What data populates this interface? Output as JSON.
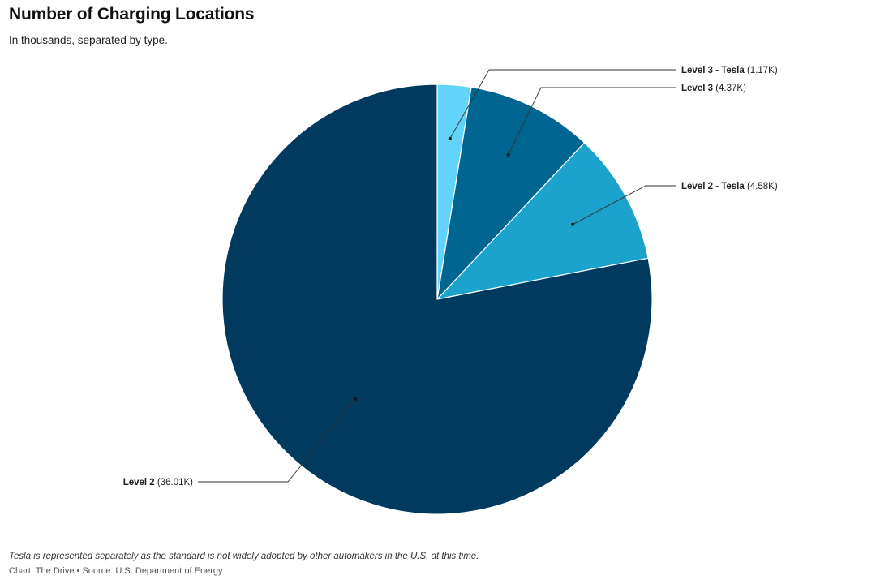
{
  "header": {
    "title": "Number of Charging Locations",
    "subtitle": "In thousands, separated by type."
  },
  "footer": {
    "note": "Tesla is represented separately as the standard is not widely adopted by other automakers in the U.S. at this time.",
    "credit": "Chart: The Drive • Source: U.S. Department of Energy"
  },
  "chart_data": {
    "type": "pie",
    "title": "Number of Charging Locations",
    "subtitle": "In thousands, separated by type.",
    "start_angle": "12 o'clock, clockwise",
    "slices": [
      {
        "name": "Level 3 - Tesla",
        "value": 1.17,
        "label": "(1.17K)",
        "color": "#62D4FA"
      },
      {
        "name": "Level 3",
        "value": 4.37,
        "label": "(4.37K)",
        "color": "#006691"
      },
      {
        "name": "Level 2 - Tesla",
        "value": 4.58,
        "label": "(4.58K)",
        "color": "#1BA3CE"
      },
      {
        "name": "Level 2",
        "value": 36.01,
        "label": "(36.01K)",
        "color": "#003A5E"
      }
    ]
  }
}
